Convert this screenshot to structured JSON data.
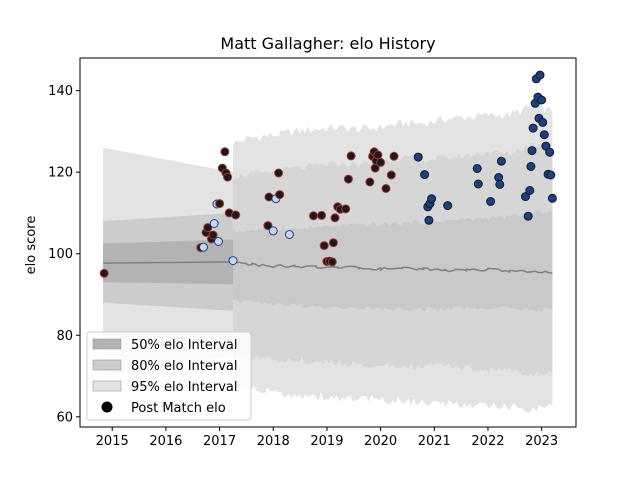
{
  "chart_data": {
    "type": "scatter",
    "title": "Matt Gallagher: elo History",
    "xlabel": "",
    "ylabel": "elo score",
    "xlim": [
      2014.4,
      2023.64
    ],
    "ylim": [
      57.5,
      148
    ],
    "x_ticks": [
      2015,
      2016,
      2017,
      2018,
      2019,
      2020,
      2021,
      2022,
      2023
    ],
    "y_ticks": [
      60,
      80,
      100,
      120,
      140
    ],
    "grid": false,
    "legend_position": "lower-left",
    "legend": [
      {
        "label": "50% elo Interval",
        "color": "#b3b3b3"
      },
      {
        "label": "80% elo Interval",
        "color": "#cccccc"
      },
      {
        "label": "95% elo Interval",
        "color": "#e3e3e3"
      },
      {
        "label": "Post Match elo",
        "color": "#000000"
      }
    ],
    "colors": {
      "mean_line": "#808080",
      "band_50": "#b3b3b3",
      "band_80": "#cccccc",
      "band_95": "#e3e3e3",
      "edge_red": "#a83232",
      "fill_dark": "#1a1a1a",
      "fill_light": "#c8d6f2",
      "fill_navy": "#1f3f7a"
    },
    "initial_block": {
      "x_start": 2014.83,
      "x_end": 2017.25,
      "mean": [
        97.7,
        98.0
      ],
      "lower50": [
        93.0,
        92.5
      ],
      "upper50": [
        102.5,
        103.5
      ],
      "lower80": [
        88.0,
        86.0
      ],
      "upper80": [
        108.0,
        110.0
      ],
      "lower95": [
        70.0,
        75.0
      ],
      "upper95": [
        126.0,
        120.0
      ]
    },
    "history": {
      "x": [
        2017.25,
        2017.6,
        2018.0,
        2018.4,
        2018.8,
        2019.2,
        2019.6,
        2020.0,
        2020.4,
        2020.8,
        2021.2,
        2021.6,
        2022.0,
        2022.4,
        2022.8,
        2023.2
      ],
      "mean": [
        97.8,
        97.4,
        97.0,
        96.9,
        96.7,
        96.5,
        96.6,
        96.3,
        96.5,
        96.2,
        96.0,
        95.9,
        96.1,
        95.8,
        95.5,
        95.3
      ],
      "upper50": [
        105.5,
        105.8,
        106.2,
        106.0,
        106.5,
        106.8,
        107.0,
        107.2,
        107.5,
        107.8,
        108.0,
        108.5,
        108.8,
        109.0,
        110.0,
        110.5
      ],
      "lower50": [
        88.5,
        88.0,
        87.5,
        87.3,
        87.0,
        86.8,
        86.7,
        86.5,
        86.5,
        86.3,
        86.5,
        86.8,
        86.8,
        86.5,
        86.2,
        86.5
      ],
      "upper80": [
        119.0,
        119.5,
        120.0,
        121.0,
        121.5,
        122.0,
        122.0,
        122.5,
        123.5,
        123.0,
        123.5,
        124.0,
        125.0,
        124.5,
        127.0,
        126.0
      ],
      "lower80": [
        75.0,
        74.5,
        74.0,
        74.0,
        73.5,
        73.0,
        73.0,
        72.5,
        72.5,
        72.0,
        72.5,
        72.0,
        71.5,
        71.5,
        70.5,
        70.5
      ],
      "upper95": [
        127.0,
        128.5,
        129.0,
        130.0,
        130.5,
        131.0,
        130.5,
        131.0,
        132.0,
        132.0,
        133.0,
        133.5,
        134.0,
        134.0,
        136.0,
        135.0
      ],
      "lower95": [
        67.0,
        66.5,
        66.0,
        65.5,
        65.0,
        64.5,
        64.5,
        64.0,
        64.0,
        63.5,
        63.0,
        63.0,
        62.5,
        62.5,
        62.0,
        62.5
      ]
    },
    "points": [
      {
        "x": 2014.85,
        "y": 95.2,
        "s": "r"
      },
      {
        "x": 2016.65,
        "y": 101.5,
        "s": "r"
      },
      {
        "x": 2016.7,
        "y": 101.6,
        "s": "l"
      },
      {
        "x": 2016.75,
        "y": 105.2,
        "s": "r"
      },
      {
        "x": 2016.78,
        "y": 106.4,
        "s": "r"
      },
      {
        "x": 2016.85,
        "y": 103.6,
        "s": "r"
      },
      {
        "x": 2016.88,
        "y": 104.6,
        "s": "r"
      },
      {
        "x": 2016.9,
        "y": 107.4,
        "s": "l"
      },
      {
        "x": 2016.95,
        "y": 112.2,
        "s": "l"
      },
      {
        "x": 2016.98,
        "y": 103.0,
        "s": "l"
      },
      {
        "x": 2017.0,
        "y": 112.3,
        "s": "r"
      },
      {
        "x": 2017.05,
        "y": 121.0,
        "s": "r"
      },
      {
        "x": 2017.1,
        "y": 125.0,
        "s": "r"
      },
      {
        "x": 2017.12,
        "y": 119.8,
        "s": "r"
      },
      {
        "x": 2017.15,
        "y": 118.8,
        "s": "r"
      },
      {
        "x": 2017.18,
        "y": 110.0,
        "s": "r"
      },
      {
        "x": 2017.25,
        "y": 98.3,
        "s": "l"
      },
      {
        "x": 2017.3,
        "y": 109.5,
        "s": "r"
      },
      {
        "x": 2017.9,
        "y": 106.9,
        "s": "r"
      },
      {
        "x": 2017.92,
        "y": 113.9,
        "s": "r"
      },
      {
        "x": 2018.0,
        "y": 105.6,
        "s": "l"
      },
      {
        "x": 2018.05,
        "y": 113.5,
        "s": "l"
      },
      {
        "x": 2018.1,
        "y": 119.8,
        "s": "r"
      },
      {
        "x": 2018.12,
        "y": 114.5,
        "s": "r"
      },
      {
        "x": 2018.3,
        "y": 104.7,
        "s": "l"
      },
      {
        "x": 2018.75,
        "y": 109.3,
        "s": "r"
      },
      {
        "x": 2018.9,
        "y": 109.4,
        "s": "r"
      },
      {
        "x": 2018.95,
        "y": 102.0,
        "s": "r"
      },
      {
        "x": 2019.0,
        "y": 98.1,
        "s": "r"
      },
      {
        "x": 2019.05,
        "y": 98.2,
        "s": "r"
      },
      {
        "x": 2019.1,
        "y": 98.0,
        "s": "r"
      },
      {
        "x": 2019.12,
        "y": 102.7,
        "s": "r"
      },
      {
        "x": 2019.15,
        "y": 108.8,
        "s": "r"
      },
      {
        "x": 2019.2,
        "y": 111.5,
        "s": "r"
      },
      {
        "x": 2019.25,
        "y": 110.9,
        "s": "r"
      },
      {
        "x": 2019.35,
        "y": 111.0,
        "s": "r"
      },
      {
        "x": 2019.4,
        "y": 118.3,
        "s": "r"
      },
      {
        "x": 2019.45,
        "y": 124.0,
        "s": "r"
      },
      {
        "x": 2019.8,
        "y": 117.6,
        "s": "r"
      },
      {
        "x": 2019.85,
        "y": 123.9,
        "s": "r"
      },
      {
        "x": 2019.88,
        "y": 125.0,
        "s": "r"
      },
      {
        "x": 2019.9,
        "y": 121.0,
        "s": "r"
      },
      {
        "x": 2019.92,
        "y": 122.8,
        "s": "r"
      },
      {
        "x": 2019.95,
        "y": 124.2,
        "s": "r"
      },
      {
        "x": 2020.0,
        "y": 122.4,
        "s": "r"
      },
      {
        "x": 2020.1,
        "y": 116.0,
        "s": "r"
      },
      {
        "x": 2020.2,
        "y": 119.3,
        "s": "r"
      },
      {
        "x": 2020.25,
        "y": 123.9,
        "s": "r"
      },
      {
        "x": 2020.7,
        "y": 123.7,
        "s": "n"
      },
      {
        "x": 2020.82,
        "y": 119.4,
        "s": "n"
      },
      {
        "x": 2020.88,
        "y": 111.5,
        "s": "n"
      },
      {
        "x": 2020.9,
        "y": 108.2,
        "s": "n"
      },
      {
        "x": 2020.92,
        "y": 112.3,
        "s": "n"
      },
      {
        "x": 2020.95,
        "y": 113.5,
        "s": "n"
      },
      {
        "x": 2021.25,
        "y": 111.8,
        "s": "n"
      },
      {
        "x": 2021.8,
        "y": 120.9,
        "s": "n"
      },
      {
        "x": 2021.82,
        "y": 117.1,
        "s": "n"
      },
      {
        "x": 2022.05,
        "y": 112.8,
        "s": "n"
      },
      {
        "x": 2022.2,
        "y": 118.7,
        "s": "n"
      },
      {
        "x": 2022.22,
        "y": 117.0,
        "s": "n"
      },
      {
        "x": 2022.25,
        "y": 122.7,
        "s": "n"
      },
      {
        "x": 2022.7,
        "y": 114.0,
        "s": "n"
      },
      {
        "x": 2022.75,
        "y": 109.2,
        "s": "n"
      },
      {
        "x": 2022.78,
        "y": 115.5,
        "s": "n"
      },
      {
        "x": 2022.8,
        "y": 121.4,
        "s": "n"
      },
      {
        "x": 2022.82,
        "y": 125.3,
        "s": "n"
      },
      {
        "x": 2022.84,
        "y": 130.8,
        "s": "n"
      },
      {
        "x": 2022.88,
        "y": 136.9,
        "s": "n"
      },
      {
        "x": 2022.9,
        "y": 142.9,
        "s": "n"
      },
      {
        "x": 2022.93,
        "y": 138.4,
        "s": "n"
      },
      {
        "x": 2022.95,
        "y": 133.2,
        "s": "n"
      },
      {
        "x": 2022.97,
        "y": 143.8,
        "s": "n"
      },
      {
        "x": 2023.0,
        "y": 137.7,
        "s": "n"
      },
      {
        "x": 2023.02,
        "y": 132.2,
        "s": "n"
      },
      {
        "x": 2023.05,
        "y": 129.2,
        "s": "n"
      },
      {
        "x": 2023.08,
        "y": 126.4,
        "s": "n"
      },
      {
        "x": 2023.12,
        "y": 119.5,
        "s": "n"
      },
      {
        "x": 2023.15,
        "y": 124.9,
        "s": "n"
      },
      {
        "x": 2023.17,
        "y": 119.3,
        "s": "n"
      },
      {
        "x": 2023.2,
        "y": 113.6,
        "s": "n"
      }
    ]
  }
}
